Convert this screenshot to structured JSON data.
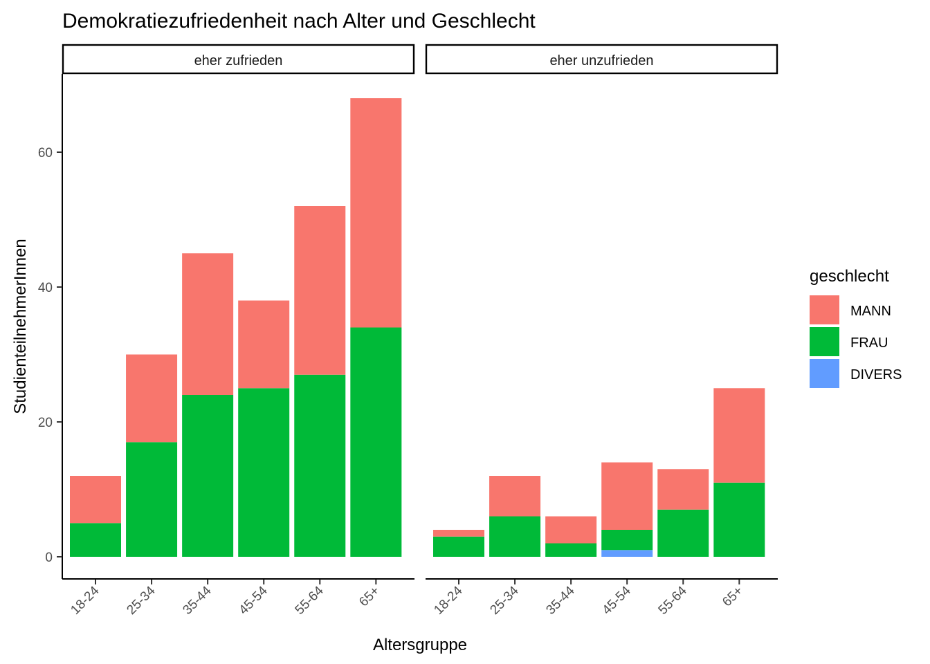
{
  "chart_data": {
    "type": "bar",
    "stacked": true,
    "faceted": true,
    "title": "Demokratiezufriedenheit nach Alter und Geschlecht",
    "xlabel": "Altersgruppe",
    "ylabel": "StudienteilnehmerInnen",
    "ylim": [
      0,
      70
    ],
    "yticks": [
      0,
      20,
      40,
      60
    ],
    "grid": false,
    "legend": {
      "title": "geschlecht",
      "placement": "right",
      "entries": [
        "MANN",
        "FRAU",
        "DIVERS"
      ]
    },
    "colors": {
      "MANN": "#F8766D",
      "FRAU": "#00BA38",
      "DIVERS": "#619CFF"
    },
    "categories": [
      "18-24",
      "25-34",
      "35-44",
      "45-54",
      "55-64",
      "65+"
    ],
    "facets": [
      {
        "label": "eher zufrieden",
        "series": [
          {
            "name": "MANN",
            "values": [
              7,
              13,
              21,
              13,
              25,
              34
            ]
          },
          {
            "name": "FRAU",
            "values": [
              5,
              17,
              24,
              25,
              27,
              34
            ]
          },
          {
            "name": "DIVERS",
            "values": [
              0,
              0,
              0,
              0,
              0,
              0
            ]
          }
        ]
      },
      {
        "label": "eher unzufrieden",
        "series": [
          {
            "name": "MANN",
            "values": [
              1,
              6,
              4,
              10,
              6,
              14
            ]
          },
          {
            "name": "FRAU",
            "values": [
              3,
              6,
              2,
              3,
              7,
              11
            ]
          },
          {
            "name": "DIVERS",
            "values": [
              0,
              0,
              0,
              1,
              0,
              0
            ]
          }
        ]
      }
    ]
  }
}
